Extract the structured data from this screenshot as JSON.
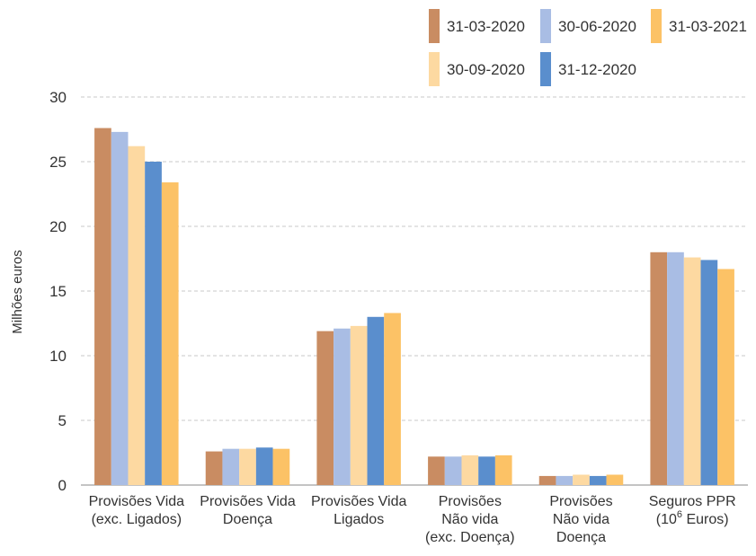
{
  "chart_data": {
    "type": "bar",
    "ylabel": "Milhões euros",
    "ylim": [
      0,
      30
    ],
    "yticks": [
      0,
      5,
      10,
      15,
      20,
      25,
      30
    ],
    "grid": true,
    "legend_position": "top-right",
    "categories": [
      {
        "lines": [
          "Provisões Vida",
          "(exc. Ligados)"
        ]
      },
      {
        "lines": [
          "Provisões Vida",
          "Doença"
        ]
      },
      {
        "lines": [
          "Provisões Vida",
          "Ligados"
        ]
      },
      {
        "lines": [
          "Provisões",
          "Não vida",
          "(exc. Doença)"
        ]
      },
      {
        "lines": [
          "Provisões",
          "Não vida",
          "Doença"
        ]
      },
      {
        "lines": [
          "Seguros PPR",
          "(10",
          "6",
          " Euros)"
        ],
        "superscript": true
      }
    ],
    "series": [
      {
        "name": "31-03-2020",
        "color": "#c98c62",
        "values": [
          27.6,
          2.6,
          11.9,
          2.2,
          0.7,
          18.0
        ]
      },
      {
        "name": "30-06-2020",
        "color": "#a9bde4",
        "values": [
          27.3,
          2.8,
          12.1,
          2.2,
          0.7,
          18.0
        ]
      },
      {
        "name": "30-09-2020",
        "color": "#fdd9a1",
        "values": [
          26.2,
          2.8,
          12.3,
          2.3,
          0.8,
          17.6
        ]
      },
      {
        "name": "31-12-2020",
        "color": "#5a8ecd",
        "values": [
          25.0,
          2.9,
          13.0,
          2.2,
          0.7,
          17.4
        ]
      },
      {
        "name": "31-03-2021",
        "color": "#fcc266",
        "values": [
          23.4,
          2.8,
          13.3,
          2.3,
          0.8,
          16.7
        ]
      }
    ]
  }
}
